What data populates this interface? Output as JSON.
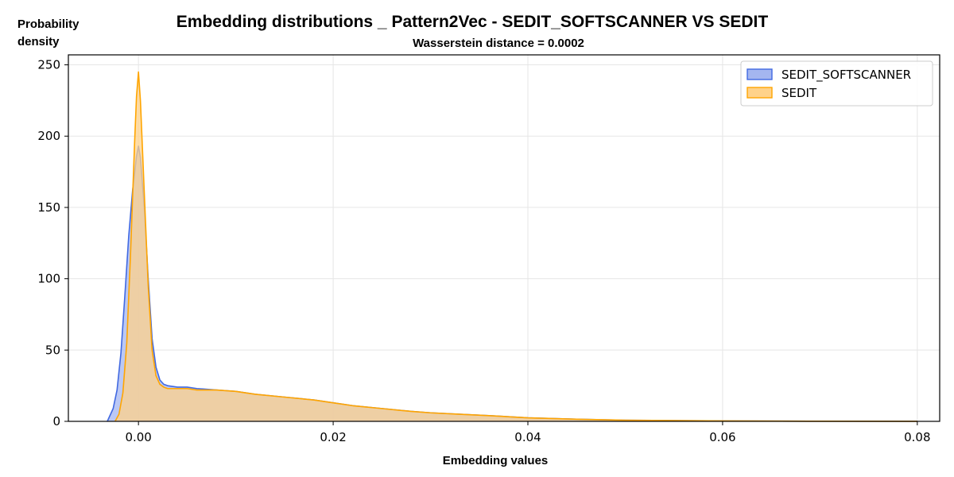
{
  "chart_data": {
    "type": "area",
    "title": "Embedding distributions _ Pattern2Vec - SEDIT_SOFTSCANNER VS SEDIT",
    "subtitle": "Wasserstein distance = 0.0002",
    "xlabel": "Embedding values",
    "ylabel": [
      "Probability",
      "density"
    ],
    "xlim": [
      -0.0072,
      0.0823
    ],
    "ylim": [
      0,
      257
    ],
    "xticks": [
      0.0,
      0.02,
      0.04,
      0.06,
      0.08
    ],
    "xtick_labels": [
      "0.00",
      "0.02",
      "0.04",
      "0.06",
      "0.08"
    ],
    "yticks": [
      0,
      50,
      100,
      150,
      200,
      250
    ],
    "ytick_labels": [
      "0",
      "50",
      "100",
      "150",
      "200",
      "250"
    ],
    "grid": true,
    "legend_position": "top-right",
    "series": [
      {
        "name": "SEDIT_SOFTSCANNER",
        "color": "#4169E1",
        "fill": "#A4B6F0",
        "x": [
          -0.0032,
          -0.003,
          -0.0026,
          -0.0022,
          -0.0018,
          -0.0014,
          -0.001,
          -0.0006,
          -0.0002,
          0.0,
          0.0002,
          0.0006,
          0.001,
          0.0014,
          0.0018,
          0.0022,
          0.0026,
          0.003,
          0.004,
          0.005,
          0.006,
          0.008,
          0.01,
          0.012,
          0.015,
          0.018,
          0.02,
          0.022,
          0.025,
          0.028,
          0.03,
          0.033,
          0.036,
          0.04,
          0.045,
          0.05,
          0.06,
          0.07,
          0.08
        ],
        "y": [
          0,
          3,
          9,
          22,
          48,
          88,
          130,
          162,
          186,
          193,
          185,
          150,
          100,
          58,
          38,
          29,
          26,
          25,
          24,
          24,
          23,
          22,
          21,
          19,
          17,
          15,
          13,
          11,
          9,
          7,
          6,
          5,
          4,
          2.5,
          1.5,
          0.8,
          0.3,
          0.1,
          0.05
        ]
      },
      {
        "name": "SEDIT",
        "color": "#FFA500",
        "fill": "#FFD28A",
        "x": [
          -0.0024,
          -0.002,
          -0.0016,
          -0.0012,
          -0.0008,
          -0.0004,
          -0.0002,
          0.0,
          0.0002,
          0.0006,
          0.001,
          0.0014,
          0.0018,
          0.0022,
          0.0026,
          0.003,
          0.004,
          0.005,
          0.006,
          0.008,
          0.01,
          0.012,
          0.015,
          0.018,
          0.02,
          0.022,
          0.025,
          0.028,
          0.03,
          0.033,
          0.036,
          0.04,
          0.045,
          0.05,
          0.06,
          0.07,
          0.08
        ],
        "y": [
          0,
          5,
          20,
          55,
          120,
          195,
          228,
          245,
          225,
          160,
          95,
          50,
          32,
          26,
          24,
          23,
          23,
          23,
          22,
          22,
          21,
          19,
          17,
          15,
          13,
          11,
          9,
          7,
          6,
          5,
          4,
          2.5,
          1.5,
          0.8,
          0.3,
          0.1,
          0.05
        ]
      }
    ]
  }
}
